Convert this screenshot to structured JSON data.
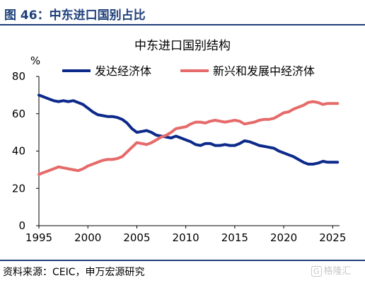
{
  "figure": {
    "label": "图 46：中东进口国别占比",
    "source": "资料来源：CEIC，申万宏源研究",
    "watermark": "格隆汇"
  },
  "chart_data": {
    "type": "line",
    "title": "中东进口国别结构",
    "ylabel": "%",
    "xlabel": "",
    "xlim": [
      1995,
      2025.7
    ],
    "ylim": [
      0,
      80
    ],
    "xticks": [
      1995,
      2000,
      2005,
      2010,
      2015,
      2020,
      2025
    ],
    "yticks": [
      0,
      20,
      40,
      60,
      80
    ],
    "grid": false,
    "legend_position": "top",
    "series": [
      {
        "name": "发达经济体",
        "color": "#0d2a8a",
        "points": [
          [
            1995,
            70
          ],
          [
            1995.5,
            69
          ],
          [
            1996,
            68
          ],
          [
            1996.5,
            67
          ],
          [
            1997,
            66.5
          ],
          [
            1997.5,
            67
          ],
          [
            1998,
            66.5
          ],
          [
            1998.5,
            67
          ],
          [
            1999,
            66
          ],
          [
            1999.5,
            65
          ],
          [
            2000,
            63
          ],
          [
            2000.5,
            61
          ],
          [
            2001,
            59.5
          ],
          [
            2001.5,
            59
          ],
          [
            2002,
            58.5
          ],
          [
            2002.5,
            58.5
          ],
          [
            2003,
            58
          ],
          [
            2003.5,
            57
          ],
          [
            2004,
            55
          ],
          [
            2004.5,
            52
          ],
          [
            2005,
            50
          ],
          [
            2005.5,
            50.5
          ],
          [
            2006,
            51
          ],
          [
            2006.5,
            50
          ],
          [
            2007,
            48.5
          ],
          [
            2007.5,
            48
          ],
          [
            2008,
            47.5
          ],
          [
            2008.5,
            47
          ],
          [
            2009,
            48
          ],
          [
            2009.5,
            47
          ],
          [
            2010,
            46
          ],
          [
            2010.5,
            45
          ],
          [
            2011,
            43.5
          ],
          [
            2011.5,
            43
          ],
          [
            2012,
            44
          ],
          [
            2012.5,
            44
          ],
          [
            2013,
            43
          ],
          [
            2013.5,
            43
          ],
          [
            2014,
            43.5
          ],
          [
            2014.5,
            43
          ],
          [
            2015,
            43
          ],
          [
            2015.5,
            44
          ],
          [
            2016,
            45.5
          ],
          [
            2016.5,
            45
          ],
          [
            2017,
            44
          ],
          [
            2017.5,
            43
          ],
          [
            2018,
            42.5
          ],
          [
            2018.5,
            42
          ],
          [
            2019,
            41.5
          ],
          [
            2019.5,
            40
          ],
          [
            2020,
            39
          ],
          [
            2020.5,
            38
          ],
          [
            2021,
            37
          ],
          [
            2021.5,
            35.5
          ],
          [
            2022,
            34
          ],
          [
            2022.5,
            33
          ],
          [
            2023,
            33
          ],
          [
            2023.5,
            33.5
          ],
          [
            2024,
            34.5
          ],
          [
            2024.5,
            34
          ],
          [
            2025,
            34
          ],
          [
            2025.5,
            34
          ]
        ]
      },
      {
        "name": "新兴和发展中经济体",
        "color": "#e66a6a",
        "points": [
          [
            1995,
            27.5
          ],
          [
            1995.5,
            28.5
          ],
          [
            1996,
            29.5
          ],
          [
            1996.5,
            30.5
          ],
          [
            1997,
            31.5
          ],
          [
            1997.5,
            31
          ],
          [
            1998,
            30.5
          ],
          [
            1998.5,
            30
          ],
          [
            1999,
            29.5
          ],
          [
            1999.5,
            30.5
          ],
          [
            2000,
            32
          ],
          [
            2000.5,
            33
          ],
          [
            2001,
            34
          ],
          [
            2001.5,
            35
          ],
          [
            2002,
            35.5
          ],
          [
            2002.5,
            35.5
          ],
          [
            2003,
            36
          ],
          [
            2003.5,
            37
          ],
          [
            2004,
            39.5
          ],
          [
            2004.5,
            42
          ],
          [
            2005,
            44.5
          ],
          [
            2005.5,
            44
          ],
          [
            2006,
            43.5
          ],
          [
            2006.5,
            44.5
          ],
          [
            2007,
            46
          ],
          [
            2007.5,
            47.5
          ],
          [
            2008,
            48.5
          ],
          [
            2008.5,
            50
          ],
          [
            2009,
            52
          ],
          [
            2009.5,
            52.5
          ],
          [
            2010,
            53
          ],
          [
            2010.5,
            54.5
          ],
          [
            2011,
            55.5
          ],
          [
            2011.5,
            55.5
          ],
          [
            2012,
            55
          ],
          [
            2012.5,
            56
          ],
          [
            2013,
            56.5
          ],
          [
            2013.5,
            56
          ],
          [
            2014,
            55.5
          ],
          [
            2014.5,
            56
          ],
          [
            2015,
            56.5
          ],
          [
            2015.5,
            56
          ],
          [
            2016,
            54.5
          ],
          [
            2016.5,
            55
          ],
          [
            2017,
            55.5
          ],
          [
            2017.5,
            56.5
          ],
          [
            2018,
            57
          ],
          [
            2018.5,
            57
          ],
          [
            2019,
            57.5
          ],
          [
            2019.5,
            59
          ],
          [
            2020,
            60.5
          ],
          [
            2020.5,
            61
          ],
          [
            2021,
            62.5
          ],
          [
            2021.5,
            63.5
          ],
          [
            2022,
            64.5
          ],
          [
            2022.5,
            66
          ],
          [
            2023,
            66.5
          ],
          [
            2023.5,
            66
          ],
          [
            2024,
            65
          ],
          [
            2024.5,
            65.5
          ],
          [
            2025,
            65.5
          ],
          [
            2025.5,
            65.5
          ]
        ]
      }
    ]
  }
}
